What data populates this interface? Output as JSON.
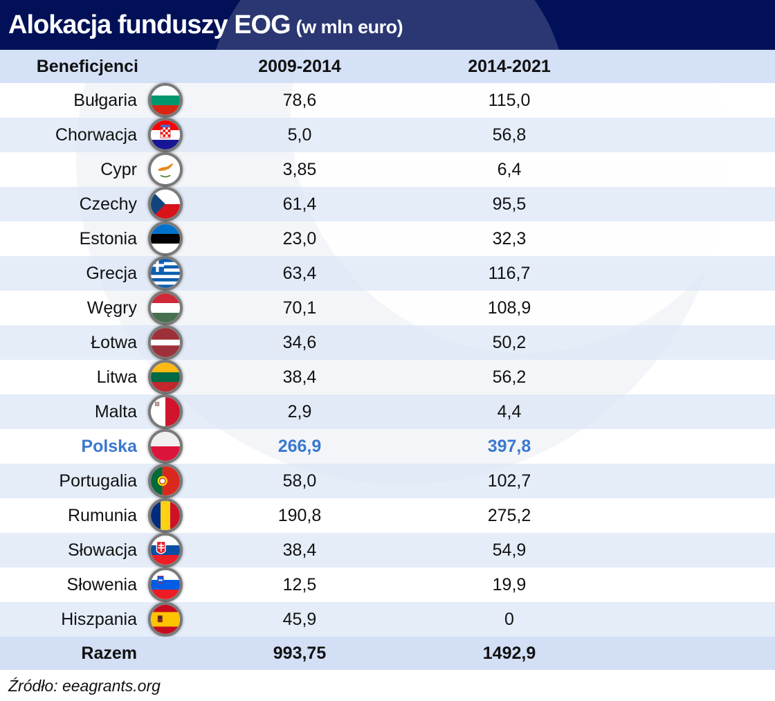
{
  "title": {
    "main": "Alokacja funduszy EOG",
    "sub": "(w mln euro)"
  },
  "table": {
    "headers": [
      "Beneficjenci",
      "2009-2014",
      "2014-2021"
    ],
    "rows": [
      {
        "country": "Bułgaria",
        "flag": "bulgaria-flag-icon",
        "v2009_2014": "78,6",
        "v2014_2021": "115,0"
      },
      {
        "country": "Chorwacja",
        "flag": "croatia-flag-icon",
        "v2009_2014": "5,0",
        "v2014_2021": "56,8"
      },
      {
        "country": "Cypr",
        "flag": "cyprus-flag-icon",
        "v2009_2014": "3,85",
        "v2014_2021": "6,4"
      },
      {
        "country": "Czechy",
        "flag": "czechia-flag-icon",
        "v2009_2014": "61,4",
        "v2014_2021": "95,5"
      },
      {
        "country": "Estonia",
        "flag": "estonia-flag-icon",
        "v2009_2014": "23,0",
        "v2014_2021": "32,3"
      },
      {
        "country": "Grecja",
        "flag": "greece-flag-icon",
        "v2009_2014": "63,4",
        "v2014_2021": "116,7"
      },
      {
        "country": "Węgry",
        "flag": "hungary-flag-icon",
        "v2009_2014": "70,1",
        "v2014_2021": "108,9"
      },
      {
        "country": "Łotwa",
        "flag": "latvia-flag-icon",
        "v2009_2014": "34,6",
        "v2014_2021": "50,2"
      },
      {
        "country": "Litwa",
        "flag": "lithuania-flag-icon",
        "v2009_2014": "38,4",
        "v2014_2021": "56,2"
      },
      {
        "country": "Malta",
        "flag": "malta-flag-icon",
        "v2009_2014": "2,9",
        "v2014_2021": "4,4"
      },
      {
        "country": "Polska",
        "flag": "poland-flag-icon",
        "v2009_2014": "266,9",
        "v2014_2021": "397,8",
        "highlight": true
      },
      {
        "country": "Portugalia",
        "flag": "portugal-flag-icon",
        "v2009_2014": "58,0",
        "v2014_2021": "102,7"
      },
      {
        "country": "Rumunia",
        "flag": "romania-flag-icon",
        "v2009_2014": "190,8",
        "v2014_2021": "275,2"
      },
      {
        "country": "Słowacja",
        "flag": "slovakia-flag-icon",
        "v2009_2014": "38,4",
        "v2014_2021": "54,9"
      },
      {
        "country": "Słowenia",
        "flag": "slovenia-flag-icon",
        "v2009_2014": "12,5",
        "v2014_2021": "19,9"
      },
      {
        "country": "Hiszpania",
        "flag": "spain-flag-icon",
        "v2009_2014": "45,9",
        "v2014_2021": "0"
      }
    ],
    "total": {
      "label": "Razem",
      "v2009_2014": "993,75",
      "v2014_2021": "1492,9"
    }
  },
  "source": "Źródło: eeagrants.org",
  "colors": {
    "title_bg": "#021157",
    "header_row_bg": "#cddcf4",
    "alt_row_bg": "#dae5f6",
    "highlight": "#3a78cf"
  },
  "chart_data": {
    "type": "table",
    "title": "Alokacja funduszy EOG (w mln euro)",
    "columns": [
      "Beneficjenci",
      "2009-2014",
      "2014-2021"
    ],
    "categories": [
      "Bułgaria",
      "Chorwacja",
      "Cypr",
      "Czechy",
      "Estonia",
      "Grecja",
      "Węgry",
      "Łotwa",
      "Litwa",
      "Malta",
      "Polska",
      "Portugalia",
      "Rumunia",
      "Słowacja",
      "Słowenia",
      "Hiszpania"
    ],
    "series": [
      {
        "name": "2009-2014",
        "values": [
          78.6,
          5.0,
          3.85,
          61.4,
          23.0,
          63.4,
          70.1,
          34.6,
          38.4,
          2.9,
          266.9,
          58.0,
          190.8,
          38.4,
          12.5,
          45.9
        ]
      },
      {
        "name": "2014-2021",
        "values": [
          115.0,
          56.8,
          6.4,
          95.5,
          32.3,
          116.7,
          108.9,
          50.2,
          56.2,
          4.4,
          397.8,
          102.7,
          275.2,
          54.9,
          19.9,
          0
        ]
      }
    ],
    "totals": {
      "2009-2014": 993.75,
      "2014-2021": 1492.9
    },
    "highlighted_row": "Polska",
    "unit": "mln euro",
    "source": "eeagrants.org"
  }
}
